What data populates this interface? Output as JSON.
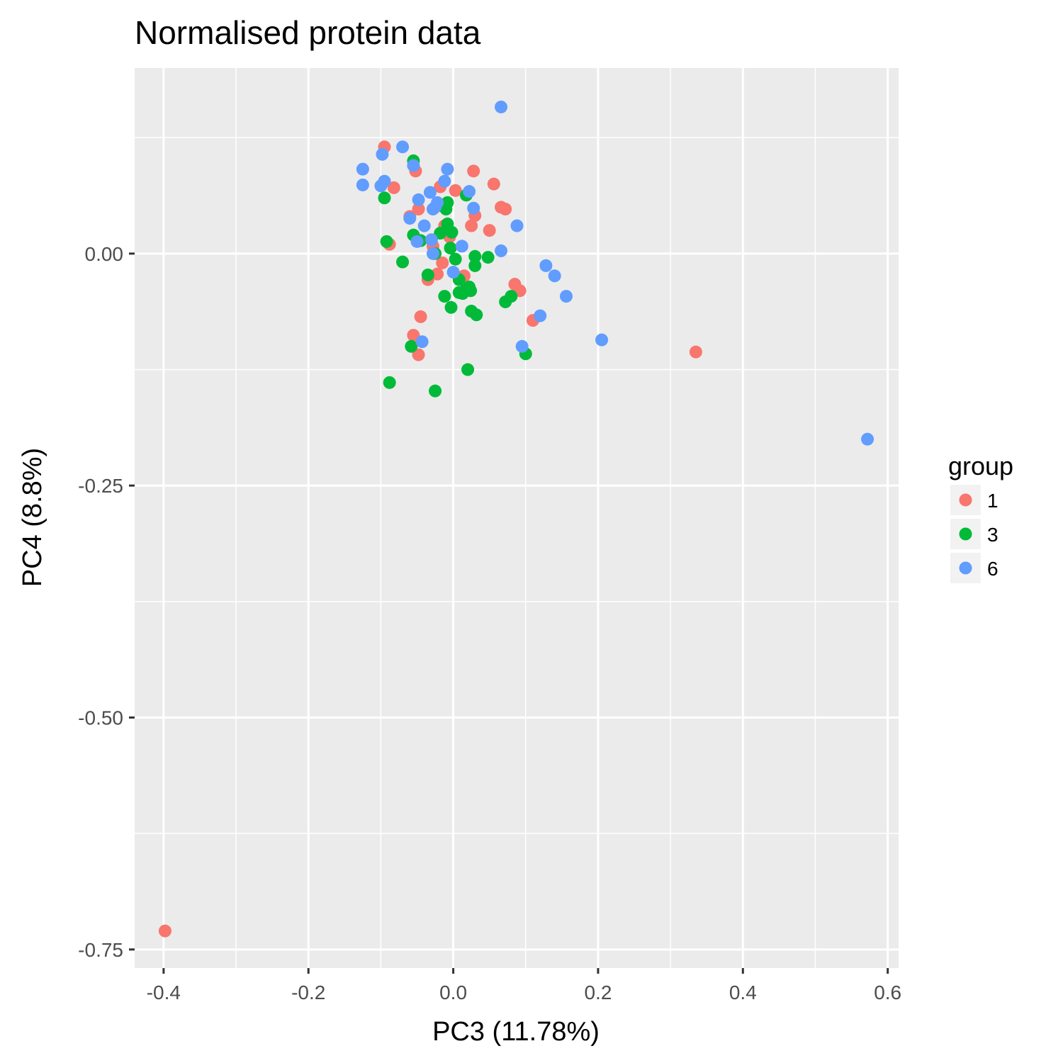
{
  "chart_data": {
    "type": "scatter",
    "title": "Normalised protein data",
    "xlabel": "PC3 (11.78%)",
    "ylabel": "PC4 (8.8%)",
    "xlim": [
      -0.44,
      0.615
    ],
    "ylim": [
      -0.77,
      0.2
    ],
    "xticks": [
      -0.4,
      -0.2,
      0.0,
      0.2,
      0.4,
      0.6
    ],
    "xtick_labels": [
      "-0.4",
      "-0.2",
      "0.0",
      "0.2",
      "0.4",
      "0.6"
    ],
    "yticks": [
      0.0,
      -0.25,
      -0.5,
      -0.75
    ],
    "ytick_labels": [
      "0.00",
      "-0.25",
      "-0.50",
      "-0.75"
    ],
    "x_minor_grid": [
      -0.3,
      -0.1,
      0.1,
      0.3,
      0.5
    ],
    "y_minor_grid": [
      0.125,
      -0.125,
      -0.375,
      -0.625
    ],
    "background": "#ebebeb",
    "grid": true,
    "legend": {
      "title": "group",
      "position": "right",
      "entries": [
        {
          "label": "1",
          "color": "#f8766d"
        },
        {
          "label": "3",
          "color": "#00ba38"
        },
        {
          "label": "6",
          "color": "#619cff"
        }
      ]
    },
    "series": [
      {
        "name": "1",
        "color": "#f8766d",
        "points": [
          [
            -0.095,
            0.115
          ],
          [
            -0.052,
            0.089
          ],
          [
            0.028,
            0.089
          ],
          [
            -0.082,
            0.071
          ],
          [
            0.056,
            0.075
          ],
          [
            0.003,
            0.068
          ],
          [
            -0.018,
            0.072
          ],
          [
            -0.048,
            0.048
          ],
          [
            -0.06,
            0.04
          ],
          [
            0.066,
            0.05
          ],
          [
            0.072,
            0.048
          ],
          [
            0.03,
            0.041
          ],
          [
            0.025,
            0.03
          ],
          [
            -0.012,
            0.03
          ],
          [
            0.05,
            0.025
          ],
          [
            -0.005,
            0.018
          ],
          [
            -0.088,
            0.01
          ],
          [
            -0.028,
            0.008
          ],
          [
            -0.015,
            -0.01
          ],
          [
            0.015,
            -0.024
          ],
          [
            -0.035,
            -0.028
          ],
          [
            -0.022,
            -0.022
          ],
          [
            0.085,
            -0.033
          ],
          [
            0.092,
            -0.04
          ],
          [
            -0.045,
            -0.068
          ],
          [
            -0.055,
            -0.088
          ],
          [
            -0.048,
            -0.109
          ],
          [
            0.11,
            -0.072
          ],
          [
            0.335,
            -0.106
          ],
          [
            -0.398,
            -0.73
          ]
        ]
      },
      {
        "name": "3",
        "color": "#00ba38",
        "points": [
          [
            -0.055,
            0.1
          ],
          [
            -0.095,
            0.06
          ],
          [
            0.018,
            0.063
          ],
          [
            -0.008,
            0.055
          ],
          [
            -0.01,
            0.048
          ],
          [
            -0.008,
            0.032
          ],
          [
            -0.055,
            0.02
          ],
          [
            -0.045,
            0.014
          ],
          [
            -0.018,
            0.022
          ],
          [
            -0.002,
            0.023
          ],
          [
            -0.092,
            0.013
          ],
          [
            -0.004,
            0.006
          ],
          [
            -0.025,
            0.0
          ],
          [
            0.003,
            -0.006
          ],
          [
            0.03,
            -0.003
          ],
          [
            0.048,
            -0.004
          ],
          [
            -0.07,
            -0.009
          ],
          [
            0.03,
            -0.013
          ],
          [
            -0.035,
            -0.023
          ],
          [
            0.008,
            -0.028
          ],
          [
            0.022,
            -0.036
          ],
          [
            0.008,
            -0.042
          ],
          [
            0.016,
            -0.04
          ],
          [
            0.024,
            -0.04
          ],
          [
            -0.012,
            -0.046
          ],
          [
            0.013,
            -0.043
          ],
          [
            0.08,
            -0.046
          ],
          [
            0.072,
            -0.052
          ],
          [
            -0.003,
            -0.058
          ],
          [
            0.025,
            -0.062
          ],
          [
            0.032,
            -0.066
          ],
          [
            -0.058,
            -0.1
          ],
          [
            0.1,
            -0.108
          ],
          [
            0.02,
            -0.125
          ],
          [
            -0.088,
            -0.139
          ],
          [
            -0.025,
            -0.148
          ]
        ]
      },
      {
        "name": "6",
        "color": "#619cff",
        "points": [
          [
            0.066,
            0.158
          ],
          [
            -0.07,
            0.115
          ],
          [
            -0.098,
            0.107
          ],
          [
            -0.055,
            0.095
          ],
          [
            -0.125,
            0.091
          ],
          [
            -0.008,
            0.091
          ],
          [
            -0.095,
            0.078
          ],
          [
            -0.1,
            0.073
          ],
          [
            -0.125,
            0.074
          ],
          [
            -0.032,
            0.066
          ],
          [
            -0.012,
            0.078
          ],
          [
            0.022,
            0.067
          ],
          [
            -0.048,
            0.058
          ],
          [
            -0.025,
            0.05
          ],
          [
            -0.028,
            0.048
          ],
          [
            -0.022,
            0.055
          ],
          [
            0.028,
            0.049
          ],
          [
            -0.06,
            0.038
          ],
          [
            -0.04,
            0.03
          ],
          [
            0.088,
            0.03
          ],
          [
            -0.05,
            0.013
          ],
          [
            0.012,
            0.008
          ],
          [
            -0.03,
            0.015
          ],
          [
            -0.028,
            0.0
          ],
          [
            0.066,
            0.003
          ],
          [
            0.0,
            -0.02
          ],
          [
            0.128,
            -0.013
          ],
          [
            0.14,
            -0.024
          ],
          [
            0.156,
            -0.046
          ],
          [
            0.12,
            -0.067
          ],
          [
            -0.043,
            -0.095
          ],
          [
            0.095,
            -0.1
          ],
          [
            0.205,
            -0.093
          ],
          [
            0.572,
            -0.2
          ]
        ]
      }
    ]
  }
}
